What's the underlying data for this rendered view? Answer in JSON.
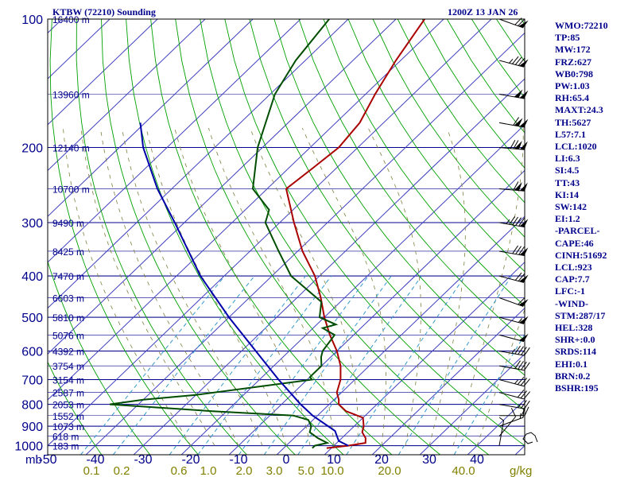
{
  "header": {
    "station": "KTBW (72210) Sounding",
    "time": "1200Z 13 JAN 26"
  },
  "indices": [
    "WMO:72210",
    "TP:85",
    "MW:172",
    "FRZ:627",
    "WB0:798",
    "PW:1.03",
    "RH:65.4",
    "MAXT:24.3",
    "TH:5627",
    "L57:7.1",
    "LCL:1020",
    "LI:6.3",
    "SI:4.5",
    "TT:43",
    "KI:14",
    "SW:142",
    "EI:1.2",
    "-PARCEL-",
    "CAPE:46",
    "CINH:51692",
    "LCL:923",
    "CAP:7.7",
    "LFC:-1",
    "-WIND-",
    "STM:287/17",
    "HEL:328",
    "SHR+:0.0",
    "SRDS:114",
    "EHI:0.1",
    "BRN:0.2",
    "BSHR:195"
  ],
  "colors": {
    "isobar": "#00008b",
    "isotherm": "#4040c0",
    "dry_adiabat": "#00a000",
    "moist_adiabat": "#808040",
    "mixing_ratio": "#3399cc",
    "temperature": "#aa0000",
    "dewpoint": "#004d00",
    "parcel": "#0000aa",
    "text": "#00008b",
    "mixing_label": "#808000"
  },
  "chart_data": {
    "type": "line",
    "title": "",
    "xlabel": "",
    "ylabel": "mb",
    "mixing_unit": "g/kg",
    "xlim": [
      -50,
      50
    ],
    "ylim": [
      1000,
      100
    ],
    "x_ticks": [
      -50,
      -40,
      -30,
      -20,
      -10,
      0,
      10,
      20,
      30,
      40
    ],
    "x_tick_labels": [
      "-50",
      "-40",
      "-30",
      "-20",
      "-10",
      "0",
      "10",
      "20",
      "30",
      "40"
    ],
    "pressure_levels": [
      100,
      200,
      300,
      400,
      500,
      600,
      700,
      800,
      900,
      1000
    ],
    "pressure_labels": [
      "100",
      "200",
      "300",
      "400",
      "500",
      "600",
      "700",
      "800",
      "900",
      "1000"
    ],
    "mixing_ratios": [
      0.1,
      0.2,
      0.6,
      1.0,
      2.0,
      3.0,
      5.0,
      10.0,
      20.0,
      40.0
    ],
    "mixing_labels": [
      "0.1",
      "0.2",
      "0.6",
      "1.0",
      "2.0",
      "3.0",
      "5.0",
      "10.0",
      "20.0",
      "40.0"
    ],
    "heights": [
      {
        "p": 100,
        "label": "16400 m"
      },
      {
        "p": 150,
        "label": "13960 m"
      },
      {
        "p": 200,
        "label": "12140 m"
      },
      {
        "p": 250,
        "label": "10700 m"
      },
      {
        "p": 300,
        "label": "9490 m"
      },
      {
        "p": 350,
        "label": "8425 m"
      },
      {
        "p": 400,
        "label": "7470 m"
      },
      {
        "p": 450,
        "label": "6603 m"
      },
      {
        "p": 500,
        "label": "5810 m"
      },
      {
        "p": 550,
        "label": "5076 m"
      },
      {
        "p": 600,
        "label": "4392 m"
      },
      {
        "p": 650,
        "label": "3754 m"
      },
      {
        "p": 700,
        "label": "3154 m"
      },
      {
        "p": 750,
        "label": "2587 m"
      },
      {
        "p": 800,
        "label": "2053 m"
      },
      {
        "p": 850,
        "label": "1552 m"
      },
      {
        "p": 900,
        "label": "1073 m"
      },
      {
        "p": 950,
        "label": "618 m"
      },
      {
        "p": 1000,
        "label": "183 m"
      }
    ],
    "series": [
      {
        "key": "temperature",
        "points": [
          [
            1013,
            9
          ],
          [
            1000,
            13
          ],
          [
            985,
            16
          ],
          [
            960,
            15
          ],
          [
            930,
            13
          ],
          [
            900,
            12
          ],
          [
            860,
            10
          ],
          [
            830,
            5
          ],
          [
            800,
            2
          ],
          [
            780,
            1
          ],
          [
            750,
            -1
          ],
          [
            700,
            -3
          ],
          [
            650,
            -6
          ],
          [
            600,
            -10
          ],
          [
            550,
            -15
          ],
          [
            500,
            -20
          ],
          [
            450,
            -25
          ],
          [
            400,
            -31
          ],
          [
            350,
            -39
          ],
          [
            300,
            -47
          ],
          [
            250,
            -56
          ],
          [
            225,
            -55
          ],
          [
            200,
            -54
          ],
          [
            175,
            -55
          ],
          [
            150,
            -58
          ],
          [
            125,
            -61
          ],
          [
            100,
            -64
          ]
        ]
      },
      {
        "key": "dewpoint",
        "points": [
          [
            1013,
            6
          ],
          [
            1000,
            6
          ],
          [
            985,
            8
          ],
          [
            960,
            5
          ],
          [
            930,
            2
          ],
          [
            900,
            1
          ],
          [
            870,
            -1
          ],
          [
            850,
            -5
          ],
          [
            830,
            -23
          ],
          [
            800,
            -46
          ],
          [
            780,
            -40
          ],
          [
            760,
            -30
          ],
          [
            700,
            -9
          ],
          [
            690,
            -10
          ],
          [
            650,
            -10
          ],
          [
            620,
            -12
          ],
          [
            600,
            -13
          ],
          [
            550,
            -14
          ],
          [
            530,
            -18
          ],
          [
            520,
            -16
          ],
          [
            500,
            -21
          ],
          [
            460,
            -24
          ],
          [
            400,
            -36
          ],
          [
            350,
            -44
          ],
          [
            300,
            -53
          ],
          [
            280,
            -55
          ],
          [
            250,
            -63
          ],
          [
            200,
            -71
          ],
          [
            150,
            -79
          ],
          [
            125,
            -82
          ],
          [
            100,
            -84
          ]
        ]
      },
      {
        "key": "parcel",
        "points": [
          [
            1000,
            13
          ],
          [
            975,
            10
          ],
          [
            923,
            7
          ],
          [
            850,
            -1
          ],
          [
            800,
            -6
          ],
          [
            700,
            -16
          ],
          [
            600,
            -27
          ],
          [
            500,
            -40
          ],
          [
            400,
            -55
          ],
          [
            300,
            -72
          ],
          [
            250,
            -83
          ],
          [
            200,
            -95
          ],
          [
            175,
            -101
          ]
        ]
      }
    ],
    "wind_barbs": [
      {
        "p": 1000,
        "dir": 190,
        "spd": 5
      },
      {
        "p": 950,
        "dir": 220,
        "spd": 10
      },
      {
        "p": 900,
        "dir": 250,
        "spd": 15
      },
      {
        "p": 850,
        "dir": 270,
        "spd": 20
      },
      {
        "p": 800,
        "dir": 280,
        "spd": 25
      },
      {
        "p": 750,
        "dir": 285,
        "spd": 30
      },
      {
        "p": 700,
        "dir": 285,
        "spd": 35
      },
      {
        "p": 650,
        "dir": 280,
        "spd": 40
      },
      {
        "p": 600,
        "dir": 280,
        "spd": 45
      },
      {
        "p": 550,
        "dir": 285,
        "spd": 50
      },
      {
        "p": 500,
        "dir": 285,
        "spd": 55
      },
      {
        "p": 450,
        "dir": 290,
        "spd": 60
      },
      {
        "p": 400,
        "dir": 285,
        "spd": 70
      },
      {
        "p": 350,
        "dir": 280,
        "spd": 80
      },
      {
        "p": 300,
        "dir": 280,
        "spd": 95
      },
      {
        "p": 250,
        "dir": 275,
        "spd": 110
      },
      {
        "p": 200,
        "dir": 275,
        "spd": 120
      },
      {
        "p": 175,
        "dir": 280,
        "spd": 110
      },
      {
        "p": 150,
        "dir": 280,
        "spd": 100
      },
      {
        "p": 125,
        "dir": 285,
        "spd": 85
      },
      {
        "p": 100,
        "dir": 290,
        "spd": 70
      }
    ],
    "hodograph": [
      [
        0,
        0
      ],
      [
        -3,
        -8
      ],
      [
        -8,
        -12
      ],
      [
        -14,
        -10
      ],
      [
        -18,
        -4
      ],
      [
        -12,
        2
      ],
      [
        -6,
        0
      ]
    ]
  }
}
